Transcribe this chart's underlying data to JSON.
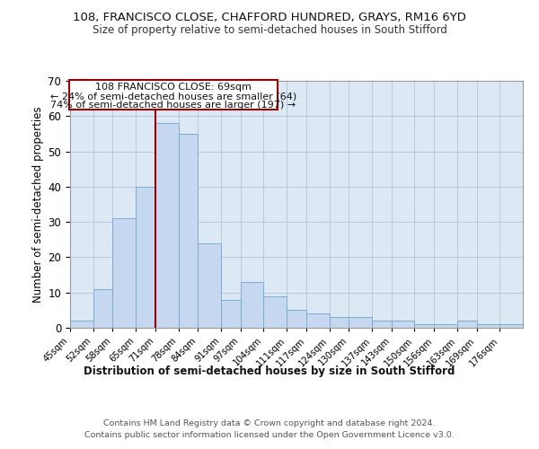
{
  "title1": "108, FRANCISCO CLOSE, CHAFFORD HUNDRED, GRAYS, RM16 6YD",
  "title2": "Size of property relative to semi-detached houses in South Stifford",
  "xlabel": "Distribution of semi-detached houses by size in South Stifford",
  "ylabel": "Number of semi-detached properties",
  "footer1": "Contains HM Land Registry data © Crown copyright and database right 2024.",
  "footer2": "Contains public sector information licensed under the Open Government Licence v3.0.",
  "annotation_line1": "108 FRANCISCO CLOSE: 69sqm",
  "annotation_line2": "← 24% of semi-detached houses are smaller (64)",
  "annotation_line3": "74% of semi-detached houses are larger (197) →",
  "bar_color": "#c5d8f0",
  "bar_edge_color": "#7aadd4",
  "red_line_x": 71,
  "categories": [
    "45sqm",
    "52sqm",
    "58sqm",
    "65sqm",
    "71sqm",
    "78sqm",
    "84sqm",
    "91sqm",
    "97sqm",
    "104sqm",
    "111sqm",
    "117sqm",
    "124sqm",
    "130sqm",
    "137sqm",
    "143sqm",
    "150sqm",
    "156sqm",
    "163sqm",
    "169sqm",
    "176sqm"
  ],
  "bin_edges": [
    45,
    52,
    58,
    65,
    71,
    78,
    84,
    91,
    97,
    104,
    111,
    117,
    124,
    130,
    137,
    143,
    150,
    156,
    163,
    169,
    176,
    183
  ],
  "values": [
    2,
    11,
    31,
    40,
    58,
    55,
    24,
    8,
    13,
    9,
    5,
    4,
    3,
    3,
    2,
    2,
    1,
    1,
    2,
    1,
    1
  ],
  "ylim": [
    0,
    70
  ],
  "yticks": [
    0,
    10,
    20,
    30,
    40,
    50,
    60,
    70
  ],
  "page_background": "#ffffff",
  "plot_background": "#dde8f5",
  "grid_color": "#b8c8dc"
}
